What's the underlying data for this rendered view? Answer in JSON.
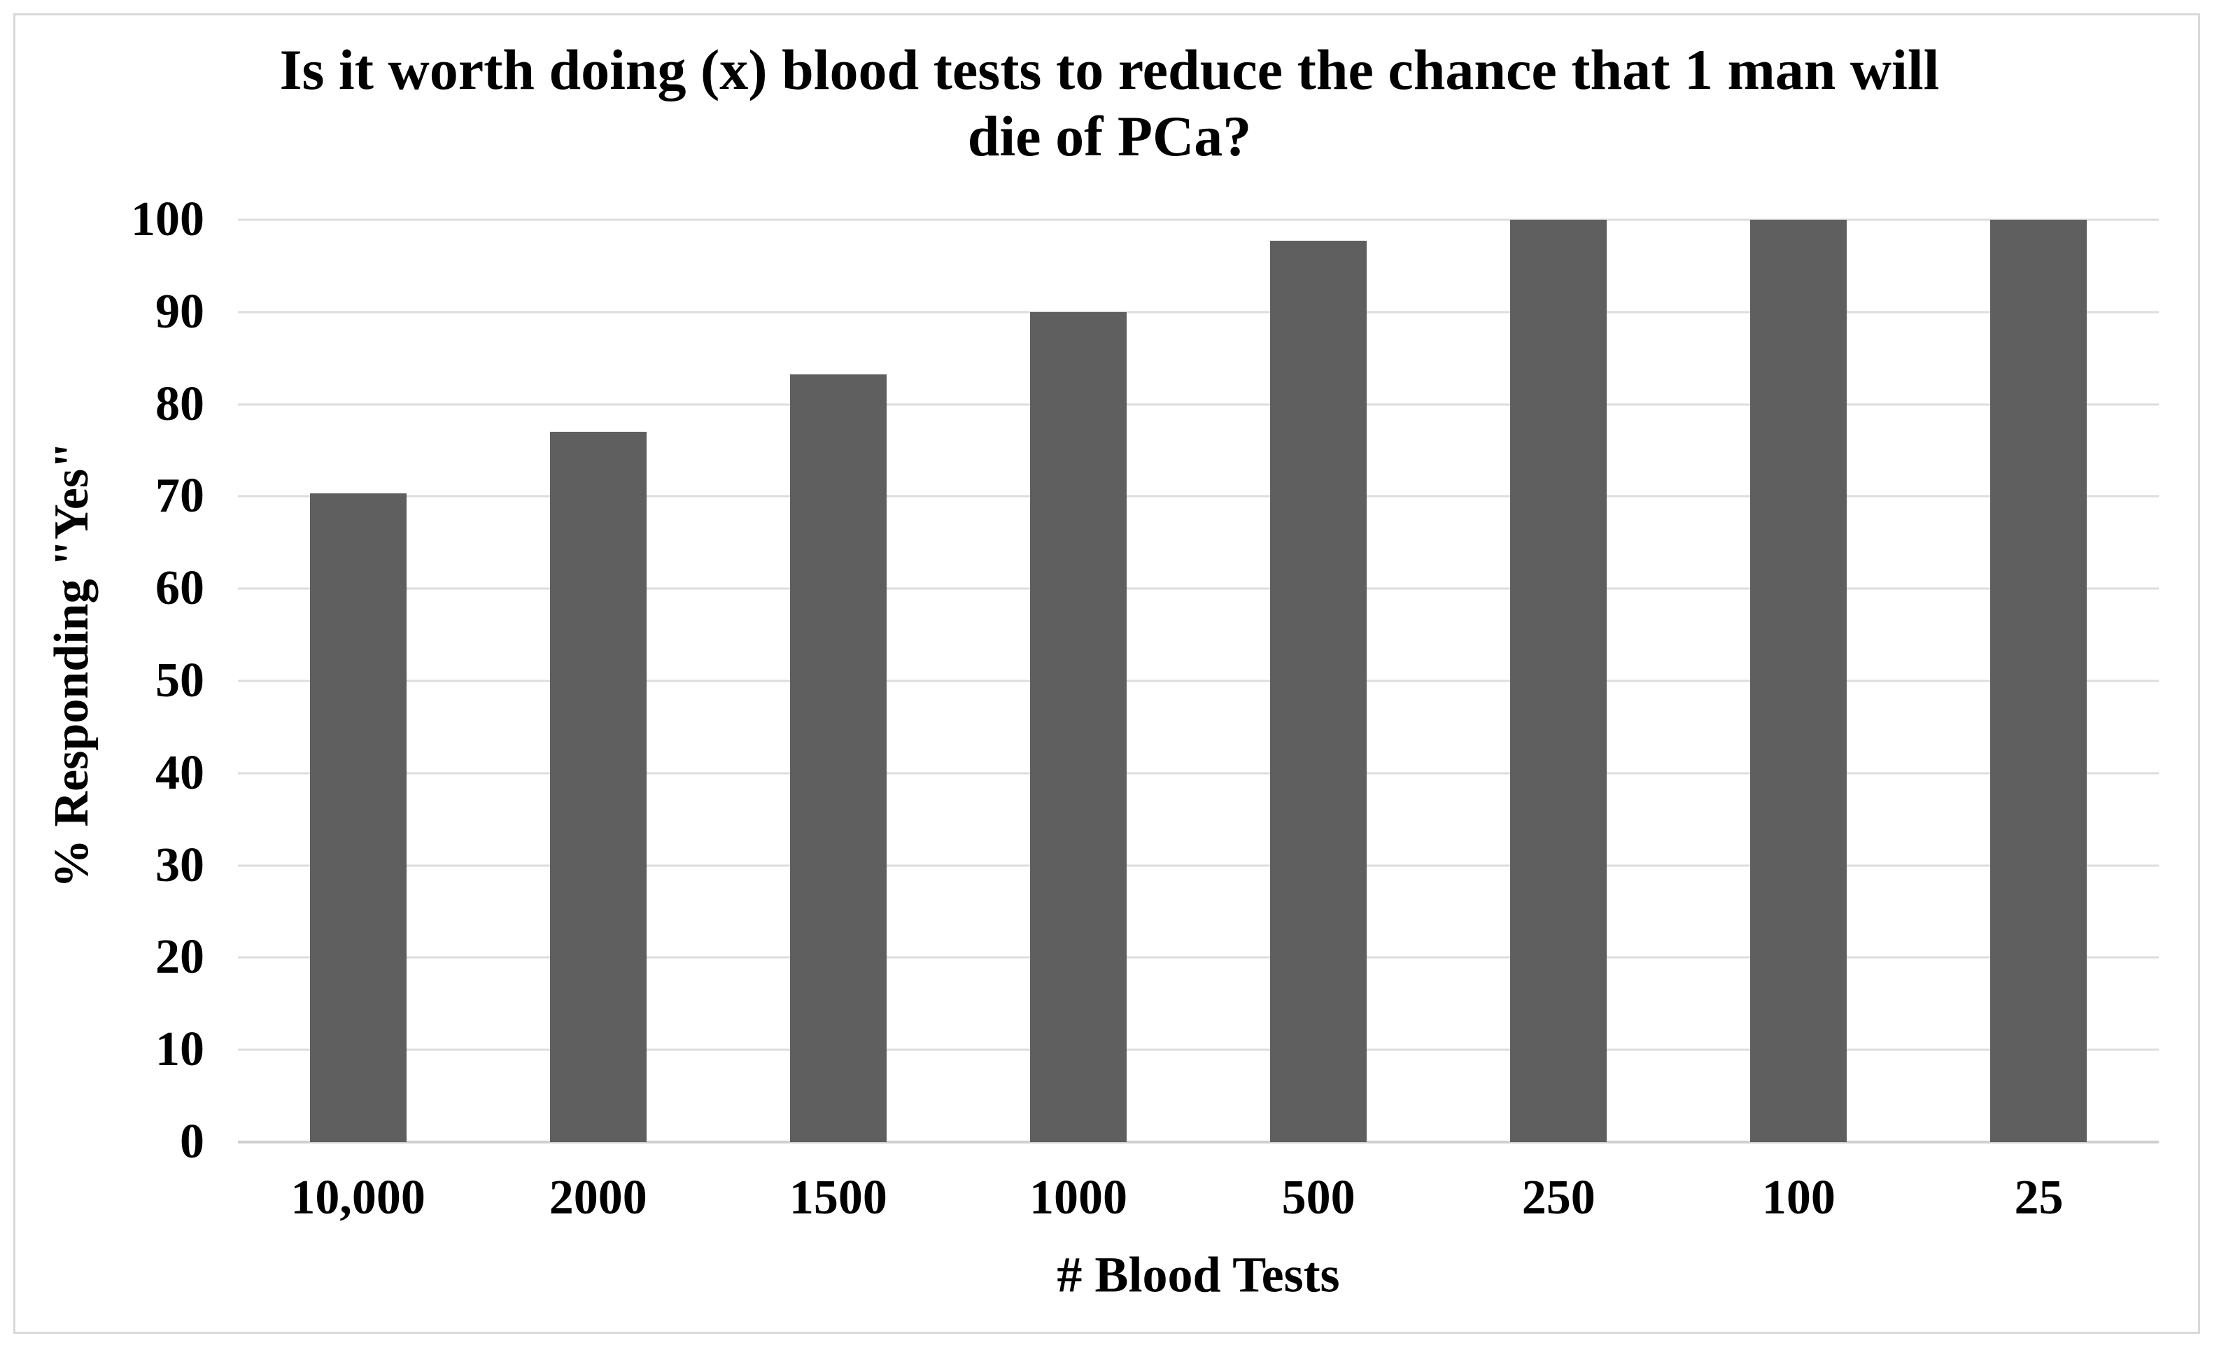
{
  "figure": {
    "title_lines": [
      "Is it worth doing (x) blood tests to reduce the chance that 1 man will",
      "die of PCa?"
    ],
    "border_color": "#d9d9d9"
  },
  "chart_data": {
    "type": "bar",
    "title": "Is it worth doing (x) blood tests to reduce the chance that 1 man will die of PCa?",
    "xlabel": "# Blood Tests",
    "ylabel": "% Responding \"Yes\"",
    "categories": [
      "10,000",
      "2000",
      "1500",
      "1000",
      "500",
      "250",
      "100",
      "25"
    ],
    "values": [
      70.3,
      77,
      83.2,
      90,
      97.7,
      100,
      100,
      100
    ],
    "ylim": [
      0,
      100
    ],
    "yticks": [
      0,
      10,
      20,
      30,
      40,
      50,
      60,
      70,
      80,
      90,
      100
    ],
    "grid": "horizontal-only",
    "legend": "none",
    "bar_color": "#5f5f5f",
    "gridline_color": "#dddddd",
    "axisline_color": "#cfcfcf",
    "text_color": "#000000"
  }
}
